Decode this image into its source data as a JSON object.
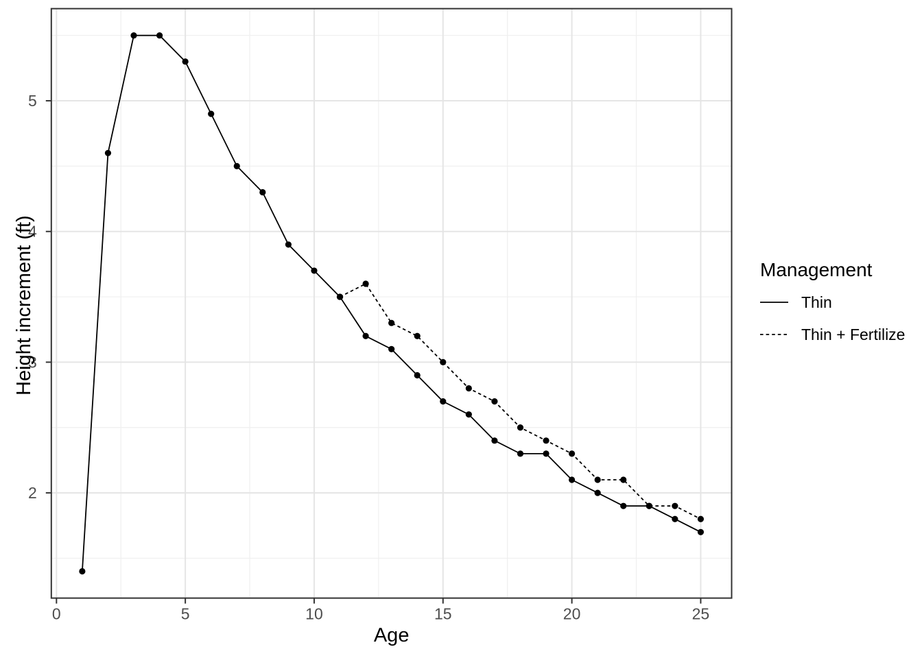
{
  "chart_data": {
    "type": "line",
    "title": "",
    "xlabel": "Age",
    "ylabel": "Height increment (ft)",
    "x_ticks": [
      0,
      5,
      10,
      15,
      20,
      25
    ],
    "y_ticks": [
      2,
      3,
      4,
      5
    ],
    "x_minor_ticks": [
      2.5,
      7.5,
      12.5,
      17.5,
      22.5
    ],
    "y_minor_ticks": [
      1.5,
      2.5,
      3.5,
      4.5,
      5.5
    ],
    "xlim": [
      -0.2,
      26.2
    ],
    "ylim": [
      1.195,
      5.705
    ],
    "grid": true,
    "legend": {
      "title": "Management",
      "position": "right",
      "entries": [
        {
          "label": "Thin",
          "linestyle": "solid"
        },
        {
          "label": "Thin + Fertilize",
          "linestyle": "dashed"
        }
      ]
    },
    "series": [
      {
        "name": "Thin",
        "linestyle": "solid",
        "marker": "circle",
        "color": "#000000",
        "x": [
          1,
          2,
          3,
          4,
          5,
          6,
          7,
          8,
          9,
          10,
          11,
          12,
          13,
          14,
          15,
          16,
          17,
          18,
          19,
          20,
          21,
          22,
          23,
          24,
          25
        ],
        "y": [
          1.4,
          4.6,
          5.5,
          5.5,
          5.3,
          4.9,
          4.5,
          4.3,
          3.9,
          3.7,
          3.5,
          3.2,
          3.1,
          2.9,
          2.7,
          2.6,
          2.4,
          2.3,
          2.3,
          2.1,
          2.0,
          1.9,
          1.9,
          1.8,
          1.7
        ]
      },
      {
        "name": "Thin + Fertilize",
        "linestyle": "dashed",
        "marker": "circle",
        "color": "#000000",
        "x": [
          11,
          12,
          13,
          14,
          15,
          16,
          17,
          18,
          19,
          20,
          21,
          22,
          23,
          24,
          25
        ],
        "y": [
          3.5,
          3.6,
          3.3,
          3.2,
          3.0,
          2.8,
          2.7,
          2.5,
          2.4,
          2.3,
          2.1,
          2.1,
          1.9,
          1.9,
          1.8
        ]
      }
    ],
    "colors": {
      "background": "#ffffff",
      "panel_background": "#ffffff",
      "grid_major": "#e5e5e5",
      "grid_minor": "#efefef",
      "panel_border": "#333333",
      "axis_tick": "#333333",
      "tick_label": "#4d4d4d",
      "axis_title": "#000000",
      "legend_text": "#000000",
      "series": "#000000"
    }
  }
}
